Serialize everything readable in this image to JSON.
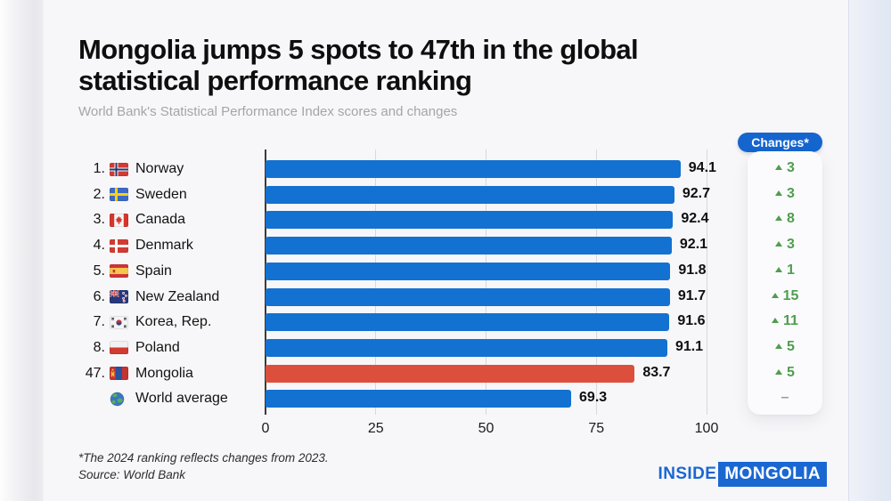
{
  "header": {
    "title_line1": "Mongolia jumps 5 spots to 47th in the global",
    "title_line2": "statistical performance ranking",
    "subtitle": "World Bank's Statistical Performance Index scores and changes"
  },
  "changes_header": "Changes*",
  "chart_data": {
    "type": "bar",
    "orientation": "horizontal",
    "title": "World Bank's Statistical Performance Index scores and changes",
    "xlim": [
      0,
      100
    ],
    "x_ticks": [
      0,
      25,
      50,
      75,
      100
    ],
    "grid": true,
    "bar_color": "#1371d1",
    "highlight_color": "#dd4f3d",
    "change_color": "#4f9e4d",
    "rows": [
      {
        "rank": "1.",
        "country": "Norway",
        "flag": "norway",
        "value": 94.1,
        "value_label": "94.1",
        "change": "3",
        "change_direction": "up",
        "highlight": false
      },
      {
        "rank": "2.",
        "country": "Sweden",
        "flag": "sweden",
        "value": 92.7,
        "value_label": "92.7",
        "change": "3",
        "change_direction": "up",
        "highlight": false
      },
      {
        "rank": "3.",
        "country": "Canada",
        "flag": "canada",
        "value": 92.4,
        "value_label": "92.4",
        "change": "8",
        "change_direction": "up",
        "highlight": false
      },
      {
        "rank": "4.",
        "country": "Denmark",
        "flag": "denmark",
        "value": 92.1,
        "value_label": "92.1",
        "change": "3",
        "change_direction": "up",
        "highlight": false
      },
      {
        "rank": "5.",
        "country": "Spain",
        "flag": "spain",
        "value": 91.8,
        "value_label": "91.8",
        "change": "1",
        "change_direction": "up",
        "highlight": false
      },
      {
        "rank": "6.",
        "country": "New Zealand",
        "flag": "new_zealand",
        "value": 91.7,
        "value_label": "91.7",
        "change": "15",
        "change_direction": "up",
        "highlight": false
      },
      {
        "rank": "7.",
        "country": "Korea, Rep.",
        "flag": "korea",
        "value": 91.6,
        "value_label": "91.6",
        "change": "11",
        "change_direction": "up",
        "highlight": false
      },
      {
        "rank": "8.",
        "country": "Poland",
        "flag": "poland",
        "value": 91.1,
        "value_label": "91.1",
        "change": "5",
        "change_direction": "up",
        "highlight": false
      },
      {
        "rank": "47.",
        "country": "Mongolia",
        "flag": "mongolia",
        "value": 83.7,
        "value_label": "83.7",
        "change": "5",
        "change_direction": "up",
        "highlight": true
      },
      {
        "rank": "",
        "country": "World average",
        "flag": "globe",
        "value": 69.3,
        "value_label": "69.3",
        "change": "-",
        "change_direction": "none",
        "highlight": false
      }
    ]
  },
  "footer": {
    "footnote": "*The 2024 ranking reflects changes from 2023.",
    "source": "Source: World Bank"
  },
  "logo": {
    "part1": "INSIDE",
    "part2": "MONGOLIA"
  },
  "colors": {
    "accent_blue": "#1565cf",
    "logo_blue": "#1a67d2",
    "title_black": "#0e0e0e"
  }
}
